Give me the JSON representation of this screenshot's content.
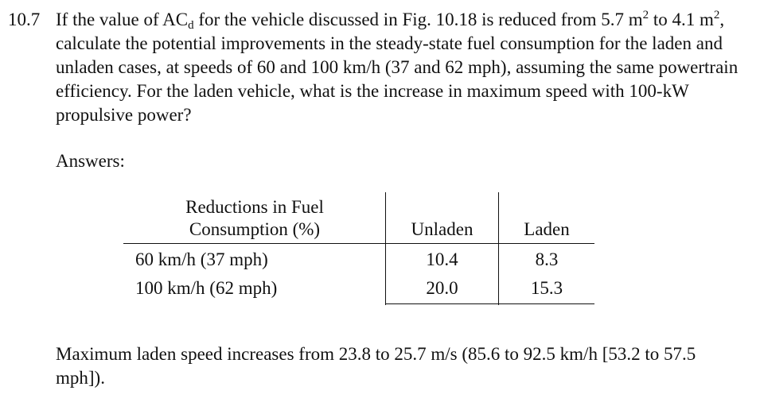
{
  "problem": {
    "number": "10.7",
    "text_part1": "If the value of AC",
    "subscript": "d",
    "text_part2": " for the vehicle discussed in Fig. 10.18 is reduced from 5.7 m",
    "sup1": "2",
    "text_part3": " to 4.1 m",
    "sup2": "2",
    "text_part4": ", calculate the potential improvements in the steady-state fuel consumption for the laden and unladen cases, at speeds of 60 and 100 km/h (37 and 62 mph), assuming the same powertrain efficiency. For the laden vehicle, what is the increase in maximum speed with 100-kW propulsive power?"
  },
  "answers_label": "Answers:",
  "table": {
    "header_line1": "Reductions in Fuel",
    "header_line2": "Consumption (%)",
    "columns": [
      "Unladen",
      "Laden"
    ],
    "rows": [
      {
        "label": "60 km/h (37 mph)",
        "unladen": "10.4",
        "laden": "8.3"
      },
      {
        "label": "100 km/h (62 mph)",
        "unladen": "20.0",
        "laden": "15.3"
      }
    ]
  },
  "final_answer": "Maximum laden speed increases from 23.8 to 25.7 m/s (85.6 to 92.5 km/h [53.2 to 57.5 mph])."
}
